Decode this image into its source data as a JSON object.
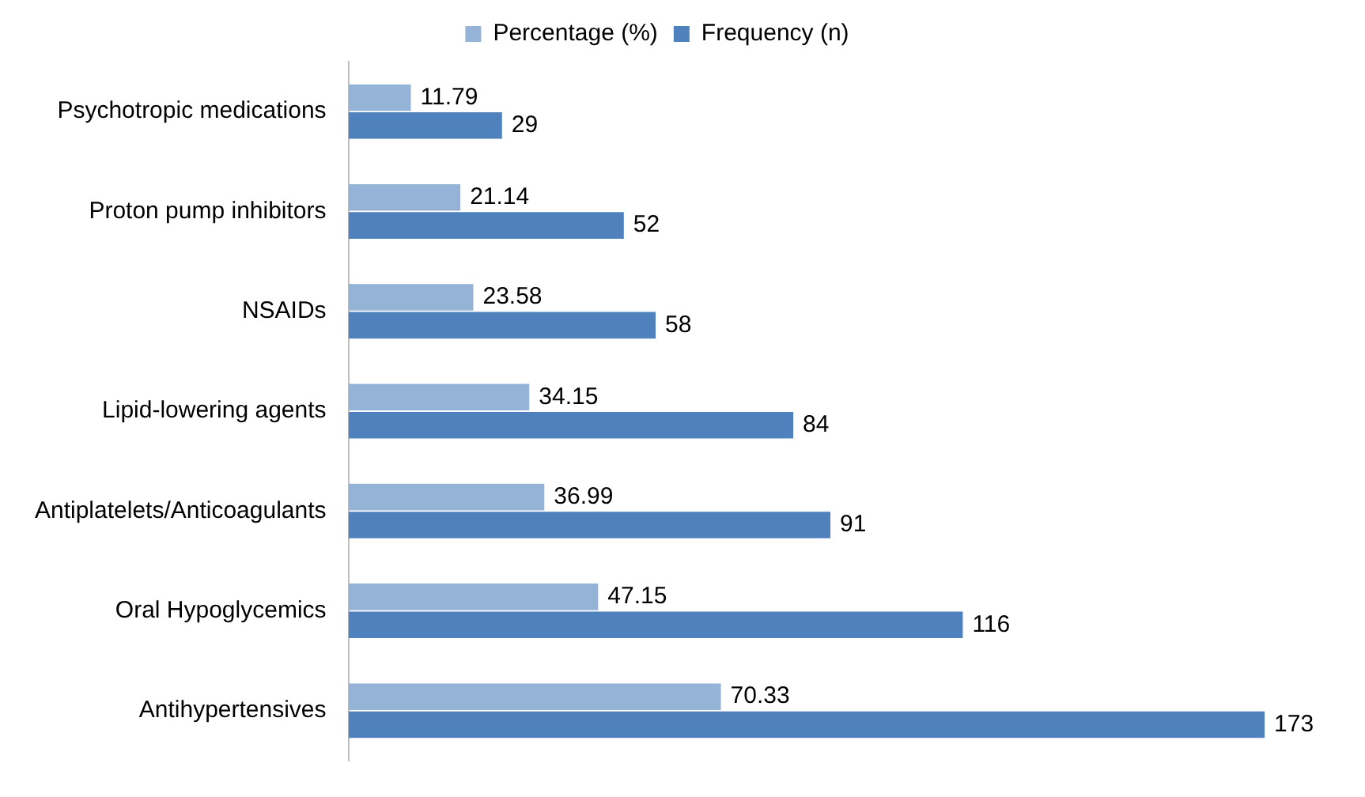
{
  "chart_data": {
    "type": "bar",
    "orientation": "horizontal",
    "categories": [
      "Psychotropic medications",
      "Proton pump inhibitors",
      "NSAIDs",
      "Lipid-lowering agents",
      "Antiplatelets/Anticoagulants",
      "Oral Hypoglycemics",
      "Antihypertensives"
    ],
    "series": [
      {
        "name": "Percentage (%)",
        "color": "#95b3d7",
        "values": [
          11.79,
          21.14,
          23.58,
          34.15,
          36.99,
          47.15,
          70.33
        ]
      },
      {
        "name": "Frequency (n)",
        "color": "#4f81bd",
        "values": [
          29,
          52,
          58,
          84,
          91,
          116,
          173
        ]
      }
    ],
    "data_labels": true,
    "legend": "top",
    "grid": false,
    "tick_labels": "y"
  }
}
